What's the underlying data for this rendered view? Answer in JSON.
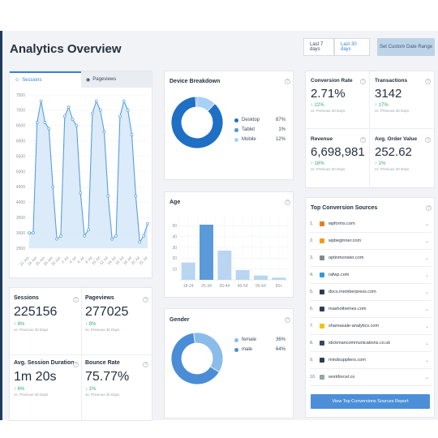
{
  "header": {
    "title": "Analytics Overview",
    "range_7": "Last 7 days",
    "range_30": "Last 30 days",
    "custom_range": "Set Custom Date Range"
  },
  "sessions_chart": {
    "tab_sessions": "Sessions",
    "tab_pageviews": "Pageviews",
    "y_ticks": [
      "7500",
      "7000",
      "6500",
      "6000",
      "5500",
      "5000",
      "4500",
      "4000",
      "3500",
      "3000",
      "2500"
    ],
    "x_ticks": [
      "22 Jun",
      "24 Jun",
      "26 Jun",
      "28 Jun",
      "30 Jun",
      "2 Jul",
      "4 Jul",
      "6 Jul",
      "8 Jul",
      "10 Jul",
      "12 Jul",
      "14 Jul",
      "16 Jul",
      "18 Jul",
      "20 Jul",
      "21 Jul"
    ]
  },
  "chart_data": {
    "type": "area",
    "title": "",
    "ylim": [
      2500,
      7500
    ],
    "values": [
      3000,
      3000,
      6600,
      7300,
      6600,
      6400,
      4500,
      2800,
      2900,
      6800,
      7100,
      6700,
      6500,
      4300,
      2900,
      3100,
      6900,
      7300,
      7000,
      6300,
      4200,
      2800,
      2900,
      6800,
      7300,
      7000,
      6200,
      4200,
      2700,
      2900,
      3300
    ]
  },
  "stats": {
    "sessions": {
      "title": "Sessions",
      "value": "225156",
      "change": "8%",
      "sub": "vs. Previous 30 Days"
    },
    "pageviews": {
      "title": "Pageviews",
      "value": "277025",
      "change": "8%",
      "sub": "vs. Previous 30 Days"
    },
    "duration": {
      "title": "Avg. Session Duration",
      "value": "1m 20s",
      "change": "6%",
      "sub": "vs. Previous 30 Days"
    },
    "bounce": {
      "title": "Bounce Rate",
      "value": "75.77%",
      "change": "1%",
      "sub": "vs. Previous 30 Days"
    }
  },
  "device": {
    "title": "Device Breakdown",
    "items": [
      {
        "label": "Desktop",
        "value": "87%",
        "pct": 87,
        "color": "#1f6fc4"
      },
      {
        "label": "Tablet",
        "value": "1%",
        "pct": 1,
        "color": "#4f95dc"
      },
      {
        "label": "Mobile",
        "value": "12%",
        "pct": 12,
        "color": "#a9d0f5"
      }
    ]
  },
  "age": {
    "title": "Age",
    "categories": [
      "18-24",
      "25-34",
      "35-44",
      "45-54",
      "55-64",
      "65+"
    ],
    "values": [
      16,
      51,
      27,
      9,
      4,
      2
    ],
    "ticks": [
      "50",
      "40",
      "30",
      "20",
      "10"
    ]
  },
  "gender": {
    "title": "Gender",
    "items": [
      {
        "label": "female",
        "value": "36%",
        "pct": 36,
        "color": "#8bbbe9"
      },
      {
        "label": "male",
        "value": "64%",
        "pct": 64,
        "color": "#4a8dd6"
      }
    ]
  },
  "ecom": {
    "conversion": {
      "title": "Conversion Rate",
      "value": "2.71%",
      "change": "22%",
      "sub": "vs. Previous 30 Days"
    },
    "transactions": {
      "title": "Transactions",
      "value": "3142",
      "change": "17%",
      "sub": "vs. Previous 30 Days"
    },
    "revenue": {
      "title": "Revenue",
      "value": "6,698,981",
      "change": "16%",
      "sub": "vs. Previous 30 Days"
    },
    "aov": {
      "title": "Avg. Order Value",
      "value": "252.62",
      "change": "1%",
      "sub": "vs. Previous 30 Days"
    }
  },
  "sources": {
    "title": "Top Conversion Sources",
    "items": [
      {
        "num": "1.",
        "name": "wpforms.com",
        "color": "#e67e22"
      },
      {
        "num": "2.",
        "name": "wpbeginner.com",
        "color": "#f39c12"
      },
      {
        "num": "3.",
        "name": "optinmonster.com",
        "color": "#7f8c8d"
      },
      {
        "num": "4.",
        "name": "rafwp.com",
        "color": "#3498db"
      },
      {
        "num": "5.",
        "name": "docs.memberpress.com",
        "color": "#2c3e50"
      },
      {
        "num": "6.",
        "name": "mashothemes.com",
        "color": "#2c3e50"
      },
      {
        "num": "7.",
        "name": "shareasale-analytics.com",
        "color": "#f1c40f"
      },
      {
        "num": "8.",
        "name": "stickmancommunications.co.uk",
        "color": "#34495e"
      },
      {
        "num": "9.",
        "name": "mindsuppliers.com",
        "color": "#2c3e50"
      },
      {
        "num": "10.",
        "name": "workforcel.co",
        "color": "#95a5a6"
      }
    ],
    "button": "View Top Conversions Sources Report"
  }
}
